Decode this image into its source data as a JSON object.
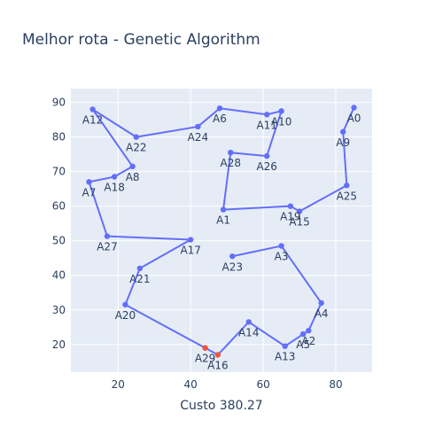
{
  "chart_data": {
    "type": "scatter",
    "title": "Melhor rota - Genetic Algorithm",
    "xlabel": "Custo 380.27",
    "ylabel": "",
    "xlim": [
      7,
      90
    ],
    "ylim": [
      12,
      94
    ],
    "xticks": [
      20,
      40,
      60,
      80
    ],
    "yticks": [
      20,
      30,
      40,
      50,
      60,
      70,
      80,
      90
    ],
    "grid": true,
    "colors": {
      "route": "#636efa",
      "highlight": "#ef553b",
      "plot_bg": "#e5ecf6",
      "text": "#2a3f5f"
    },
    "route": [
      {
        "label": "A0",
        "x": 85,
        "y": 88.5
      },
      {
        "label": "A9",
        "x": 82,
        "y": 81.5
      },
      {
        "label": "A25",
        "x": 83,
        "y": 66
      },
      {
        "label": "A15",
        "x": 70,
        "y": 58.5
      },
      {
        "label": "A19",
        "x": 67.5,
        "y": 60
      },
      {
        "label": "A1",
        "x": 49,
        "y": 59
      },
      {
        "label": "A28",
        "x": 51,
        "y": 75.5
      },
      {
        "label": "A26",
        "x": 61,
        "y": 74.5
      },
      {
        "label": "A10",
        "x": 65,
        "y": 87.5
      },
      {
        "label": "A11",
        "x": 61,
        "y": 86.5
      },
      {
        "label": "A6",
        "x": 48,
        "y": 88.3
      },
      {
        "label": "A24",
        "x": 42,
        "y": 83
      },
      {
        "label": "A22",
        "x": 25,
        "y": 80
      },
      {
        "label": "A12",
        "x": 13,
        "y": 88
      },
      {
        "label": "A8",
        "x": 24,
        "y": 71.5
      },
      {
        "label": "A18",
        "x": 19,
        "y": 68.5
      },
      {
        "label": "A7",
        "x": 12,
        "y": 67
      },
      {
        "label": "A27",
        "x": 17,
        "y": 51.3
      },
      {
        "label": "A17",
        "x": 40,
        "y": 50.3
      },
      {
        "label": "A21",
        "x": 26,
        "y": 42
      },
      {
        "label": "A20",
        "x": 22,
        "y": 31.5
      },
      {
        "label": "A29",
        "x": 44,
        "y": 19
      },
      {
        "label": "A16",
        "x": 47.5,
        "y": 17
      },
      {
        "label": "A14",
        "x": 56,
        "y": 26.5
      },
      {
        "label": "A13",
        "x": 66,
        "y": 19.5
      },
      {
        "label": "A5",
        "x": 71,
        "y": 23
      },
      {
        "label": "A2",
        "x": 72.5,
        "y": 24
      },
      {
        "label": "A4",
        "x": 76,
        "y": 32
      },
      {
        "label": "A3",
        "x": 65,
        "y": 48.5
      },
      {
        "label": "A23",
        "x": 51.5,
        "y": 45.5
      }
    ],
    "highlighted": [
      "A29",
      "A16"
    ]
  }
}
